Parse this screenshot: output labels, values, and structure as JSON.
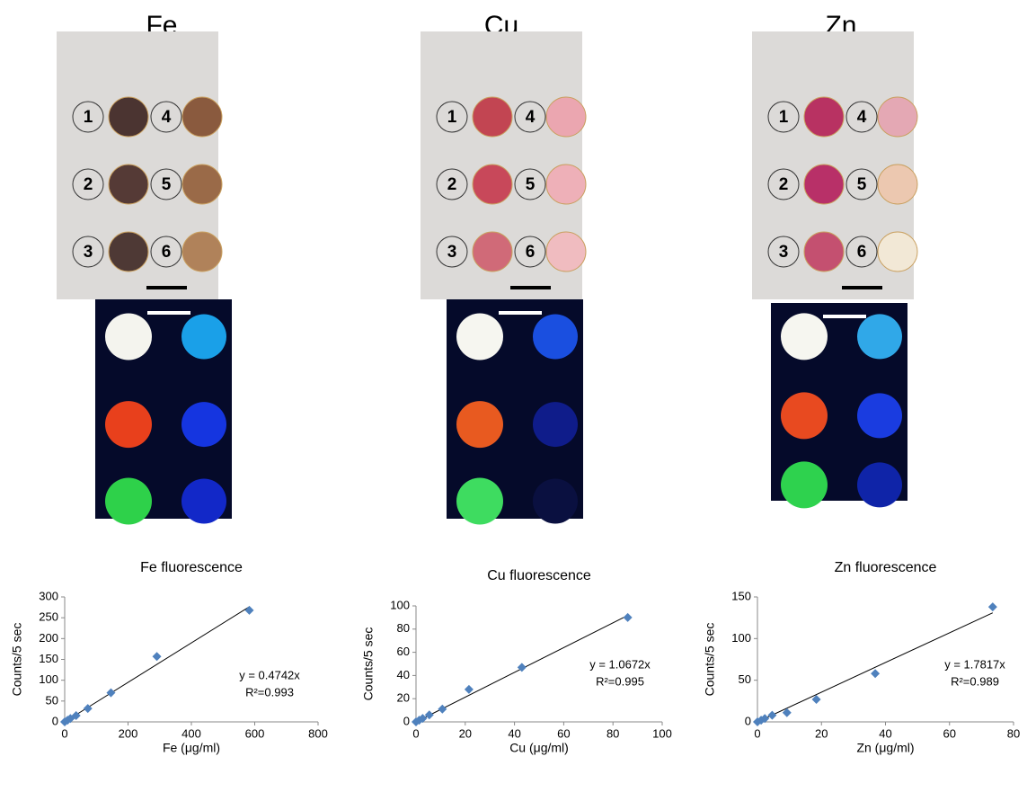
{
  "panels": [
    {
      "title": "Fe",
      "labels": [
        "1",
        "2",
        "3",
        "4",
        "5",
        "6"
      ]
    },
    {
      "title": "Cu",
      "labels": [
        "1",
        "2",
        "3",
        "4",
        "5",
        "6"
      ]
    },
    {
      "title": "Zn",
      "labels": [
        "1",
        "2",
        "3",
        "4",
        "5",
        "6"
      ]
    }
  ],
  "chart_data": [
    {
      "type": "scatter",
      "title": "Fe fluorescence",
      "x_label": "Fe (μg/ml)",
      "y_label": "Counts/5 sec",
      "x": [
        0,
        9,
        18,
        36,
        73,
        146,
        291,
        583
      ],
      "values": [
        0,
        4,
        8,
        15,
        32,
        70,
        157,
        268
      ],
      "color": "#4f81bd",
      "trendline": {
        "slope": 0.4742,
        "label": "y = 0.4742x"
      },
      "r2_label": "R²=0.993",
      "xlim": [
        0,
        800
      ],
      "xticks": [
        0,
        200,
        400,
        600,
        800
      ],
      "ylim": [
        0,
        300
      ],
      "yticks": [
        0,
        50,
        100,
        150,
        200,
        250,
        300
      ]
    },
    {
      "type": "scatter",
      "title": "Cu fluorescence",
      "x_label": "Cu (μg/ml)",
      "y_label": "Counts/5 sec",
      "x": [
        0,
        1.3,
        2.7,
        5.4,
        10.7,
        21.5,
        43,
        86
      ],
      "values": [
        0,
        1.5,
        3,
        6,
        11,
        28,
        47,
        90
      ],
      "color": "#4f81bd",
      "trendline": {
        "slope": 1.0672,
        "label": "y = 1.0672x"
      },
      "r2_label": "R²=0.995",
      "xlim": [
        0,
        100
      ],
      "xticks": [
        0,
        20,
        40,
        60,
        80,
        100
      ],
      "ylim": [
        0,
        100
      ],
      "yticks": [
        0,
        20,
        40,
        60,
        80,
        100
      ]
    },
    {
      "type": "scatter",
      "title": "Zn fluorescence",
      "x_label": "Zn (μg/ml)",
      "y_label": "Counts/5 sec",
      "x": [
        0,
        1.15,
        2.3,
        4.6,
        9.2,
        18.4,
        36.8,
        73.5
      ],
      "values": [
        0,
        2,
        4,
        8,
        11,
        27,
        58,
        138
      ],
      "color": "#4f81bd",
      "trendline": {
        "slope": 1.7817,
        "label": "y = 1.7817x"
      },
      "r2_label": "R²=0.989",
      "xlim": [
        0,
        80
      ],
      "xticks": [
        0,
        20,
        40,
        60,
        80
      ],
      "ylim": [
        0,
        150
      ],
      "yticks": [
        0,
        50,
        100,
        150
      ]
    }
  ]
}
